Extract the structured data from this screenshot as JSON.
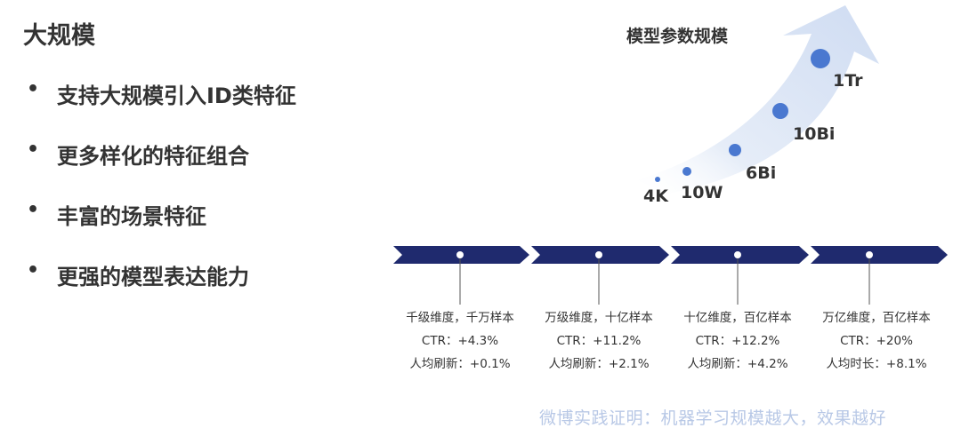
{
  "title": "大规模",
  "bullets": [
    "支持大规模引入ID类特征",
    "更多样化的特征组合",
    "丰富的场景特征",
    "更强的模型表达能力"
  ],
  "chart": {
    "title": "模型参数规模",
    "points": [
      "4K",
      "10W",
      "6Bi",
      "10Bi",
      "1Tr"
    ]
  },
  "stages": [
    {
      "dims": "千级维度，千万样本",
      "ctr": "CTR：+4.3%",
      "metric": "人均刷新：+0.1%"
    },
    {
      "dims": "万级维度，十亿样本",
      "ctr": "CTR：+11.2%",
      "metric": "人均刷新：+2.1%"
    },
    {
      "dims": "十亿维度，百亿样本",
      "ctr": "CTR：+12.2%",
      "metric": "人均刷新：+4.2%"
    },
    {
      "dims": "万亿维度，百亿样本",
      "ctr": "CTR：+20%",
      "metric": "人均时长：+8.1%"
    }
  ],
  "footer": "微博实践证明：机器学习规模越大，效果越好",
  "colors": {
    "accent": "#4a78d0",
    "timeline": "#1f2a6e",
    "arrow": "#dce6f6",
    "footer": "#b8c8e6"
  }
}
